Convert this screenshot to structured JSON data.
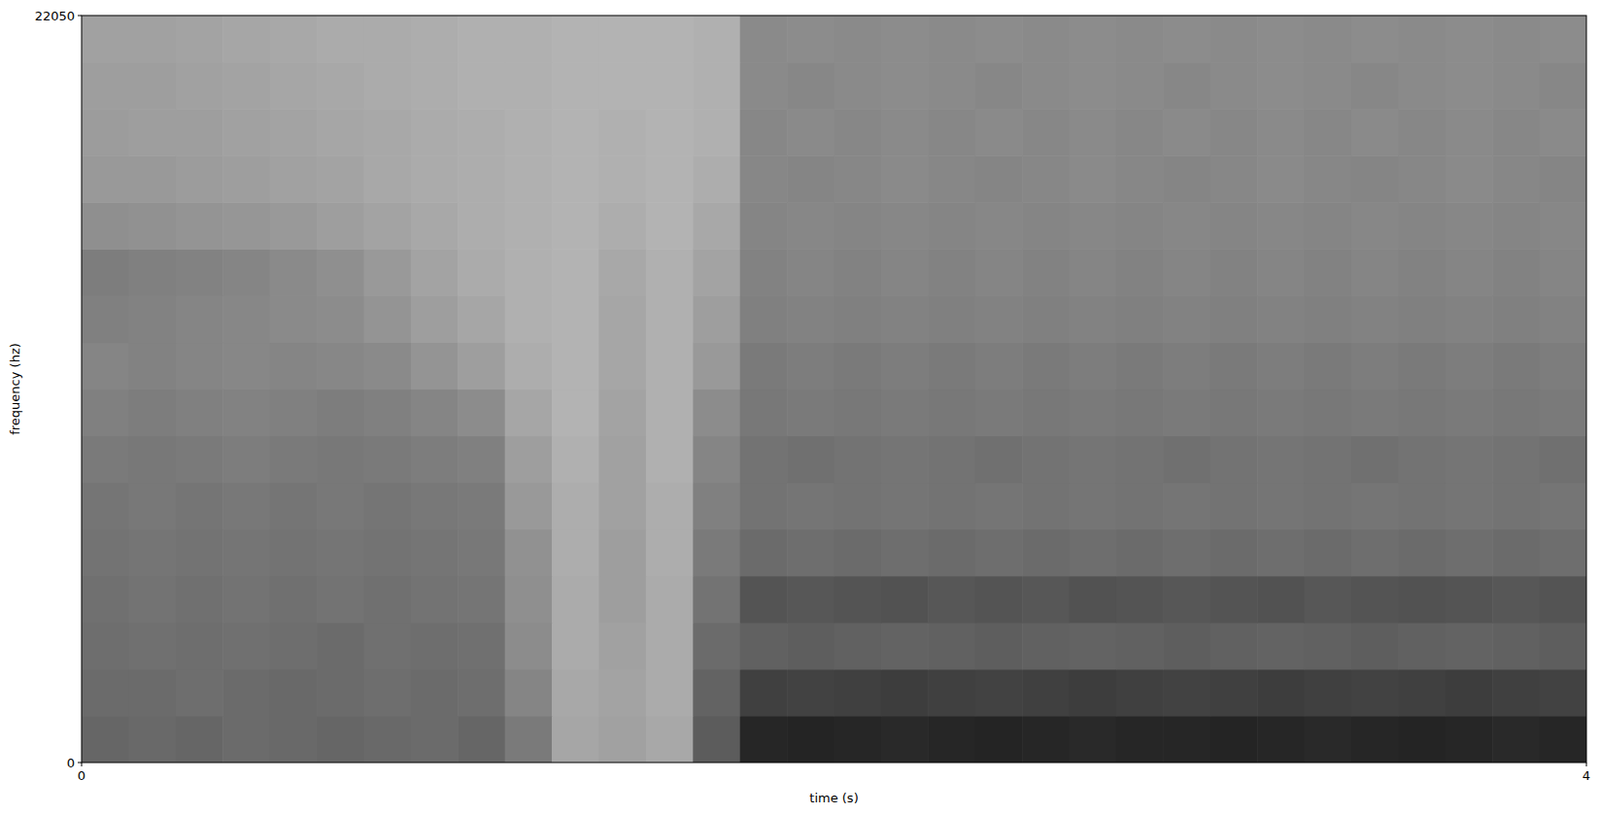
{
  "chart_data": {
    "type": "heatmap",
    "x_label": "time (s)",
    "y_label": "frequency (hz)",
    "xlim": [
      0,
      4
    ],
    "ylim": [
      0,
      22050
    ],
    "xticks": [
      0,
      4
    ],
    "yticks": [
      0,
      22050
    ],
    "zlim": [
      0,
      100
    ],
    "z": [
      [
        40,
        41,
        40,
        42,
        41,
        40,
        41,
        42,
        40,
        48,
        65,
        63,
        66,
        36,
        15,
        14,
        15,
        16,
        15,
        14,
        15,
        16,
        15,
        15,
        14,
        15,
        16,
        15,
        14,
        15,
        16,
        15
      ],
      [
        42,
        42,
        43,
        42,
        41,
        42,
        43,
        42,
        43,
        52,
        66,
        64,
        67,
        39,
        25,
        26,
        25,
        24,
        25,
        26,
        25,
        24,
        25,
        26,
        25,
        24,
        25,
        26,
        25,
        24,
        25,
        26
      ],
      [
        43,
        44,
        43,
        44,
        43,
        42,
        44,
        43,
        44,
        55,
        67,
        63,
        67,
        42,
        38,
        37,
        38,
        39,
        38,
        37,
        38,
        39,
        38,
        37,
        38,
        39,
        38,
        37,
        38,
        39,
        38,
        37
      ],
      [
        44,
        45,
        44,
        45,
        44,
        45,
        44,
        45,
        46,
        56,
        67,
        62,
        67,
        45,
        33,
        34,
        33,
        32,
        34,
        33,
        34,
        32,
        33,
        34,
        33,
        32,
        34,
        33,
        32,
        33,
        34,
        33
      ],
      [
        45,
        46,
        45,
        46,
        45,
        46,
        45,
        46,
        47,
        57,
        68,
        62,
        68,
        48,
        42,
        43,
        42,
        43,
        42,
        43,
        42,
        43,
        42,
        43,
        42,
        43,
        42,
        43,
        42,
        43,
        42,
        43
      ],
      [
        46,
        47,
        46,
        47,
        46,
        47,
        46,
        47,
        48,
        60,
        68,
        63,
        68,
        50,
        45,
        46,
        45,
        46,
        45,
        46,
        45,
        46,
        45,
        46,
        45,
        46,
        45,
        46,
        45,
        46,
        45,
        46
      ],
      [
        48,
        47,
        48,
        49,
        48,
        47,
        48,
        49,
        50,
        62,
        69,
        63,
        69,
        52,
        45,
        44,
        45,
        46,
        45,
        44,
        45,
        46,
        45,
        44,
        45,
        46,
        45,
        44,
        45,
        46,
        45,
        44
      ],
      [
        50,
        49,
        50,
        51,
        50,
        49,
        50,
        52,
        55,
        65,
        70,
        64,
        69,
        55,
        47,
        48,
        47,
        48,
        47,
        48,
        47,
        48,
        47,
        48,
        47,
        48,
        47,
        48,
        47,
        48,
        47,
        48
      ],
      [
        52,
        51,
        52,
        53,
        52,
        53,
        54,
        58,
        62,
        68,
        70,
        65,
        69,
        60,
        48,
        49,
        48,
        49,
        48,
        49,
        48,
        49,
        48,
        49,
        48,
        49,
        48,
        49,
        48,
        49,
        48,
        49
      ],
      [
        50,
        51,
        52,
        53,
        54,
        55,
        58,
        62,
        65,
        69,
        70,
        65,
        69,
        62,
        50,
        51,
        50,
        51,
        50,
        51,
        50,
        51,
        50,
        51,
        50,
        51,
        50,
        51,
        50,
        51,
        50,
        51
      ],
      [
        49,
        50,
        51,
        52,
        54,
        56,
        60,
        64,
        67,
        69,
        70,
        66,
        69,
        64,
        51,
        52,
        51,
        52,
        51,
        52,
        51,
        52,
        51,
        52,
        51,
        52,
        51,
        52,
        51,
        52,
        51,
        52
      ],
      [
        56,
        57,
        58,
        59,
        60,
        62,
        64,
        66,
        68,
        69,
        70,
        68,
        70,
        66,
        52,
        53,
        52,
        53,
        52,
        53,
        52,
        53,
        52,
        53,
        52,
        53,
        52,
        53,
        52,
        53,
        52,
        53
      ],
      [
        60,
        60,
        61,
        62,
        63,
        64,
        66,
        67,
        68,
        69,
        70,
        69,
        70,
        68,
        53,
        52,
        53,
        54,
        53,
        52,
        53,
        54,
        53,
        52,
        53,
        54,
        53,
        52,
        53,
        54,
        53,
        52
      ],
      [
        61,
        62,
        62,
        63,
        64,
        65,
        66,
        67,
        68,
        69,
        70,
        69,
        70,
        69,
        53,
        54,
        53,
        54,
        53,
        54,
        53,
        54,
        53,
        54,
        53,
        54,
        53,
        54,
        53,
        54,
        53,
        54
      ],
      [
        62,
        62,
        63,
        64,
        65,
        66,
        67,
        68,
        69,
        69,
        70,
        70,
        70,
        69,
        54,
        53,
        54,
        55,
        54,
        53,
        54,
        55,
        54,
        53,
        54,
        55,
        54,
        53,
        54,
        55,
        54,
        53
      ],
      [
        63,
        63,
        64,
        65,
        66,
        67,
        67,
        68,
        69,
        69,
        70,
        70,
        70,
        69,
        54,
        55,
        54,
        55,
        54,
        55,
        54,
        55,
        54,
        55,
        54,
        55,
        54,
        55,
        54,
        55,
        54,
        55
      ]
    ]
  }
}
